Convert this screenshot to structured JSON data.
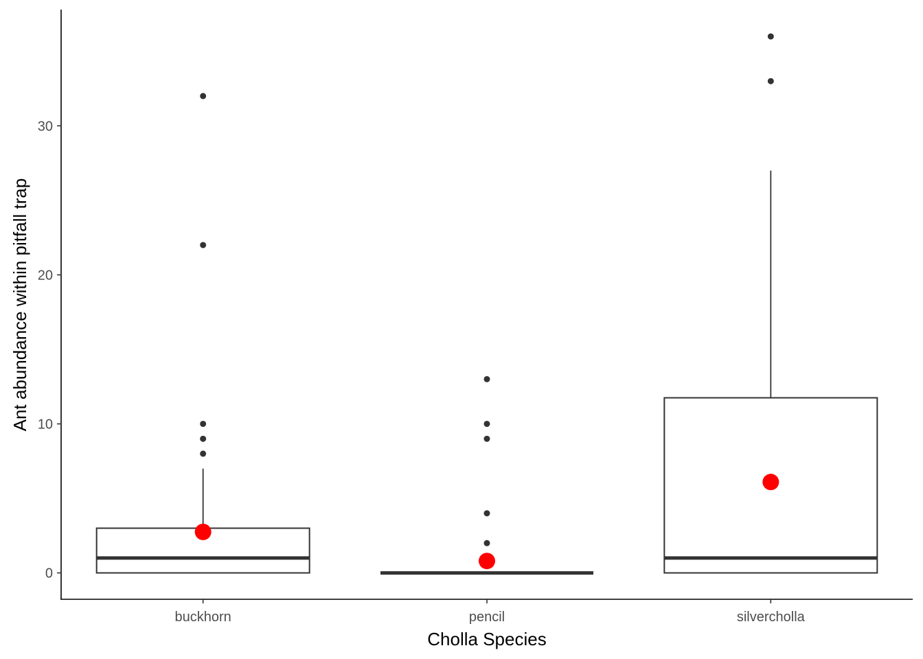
{
  "chart_data": {
    "type": "box",
    "xlabel": "Cholla Species",
    "ylabel": "Ant abundance within pitfall trap",
    "categories": [
      "buckhorn",
      "pencil",
      "silvercholla"
    ],
    "yticks": [
      0,
      10,
      20,
      30
    ],
    "ylim": [
      -1.77,
      37.8
    ],
    "grid": false,
    "legend": "none",
    "boxes": [
      {
        "category": "buckhorn",
        "q1": 0,
        "median": 1,
        "q3": 3,
        "whisker_low": 0,
        "whisker_high": 7,
        "outliers": [
          8,
          9,
          10,
          22,
          32
        ],
        "mean": 2.75
      },
      {
        "category": "pencil",
        "q1": 0,
        "median": 0,
        "q3": 0,
        "whisker_low": 0,
        "whisker_high": 0,
        "outliers": [
          2,
          4,
          9,
          10,
          13
        ],
        "mean": 0.8
      },
      {
        "category": "silvercholla",
        "q1": 0,
        "median": 1,
        "q3": 11.75,
        "whisker_low": 0,
        "whisker_high": 27,
        "outliers": [
          33,
          36
        ],
        "mean": 6.1
      }
    ],
    "colors": {
      "box_outline": "#333333",
      "mean_point": "#ff0000",
      "outlier": "#333333"
    }
  }
}
